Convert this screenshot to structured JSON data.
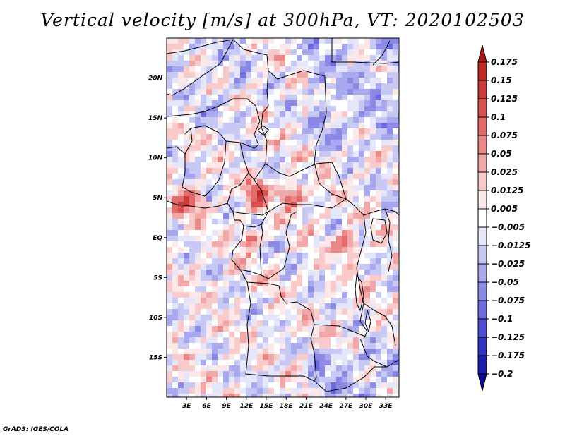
{
  "title": "Vertical velocity [m/s] at 300hPa, VT: 2020102503",
  "credit": "GrADS: IGES/COLA",
  "map": {
    "lat_labels": [
      "20N",
      "15N",
      "10N",
      "5N",
      "EQ",
      "5S",
      "10S",
      "15S"
    ],
    "lat_values": [
      20,
      15,
      10,
      5,
      0,
      -5,
      -10,
      -15
    ],
    "lon_labels": [
      "3E",
      "6E",
      "9E",
      "12E",
      "15E",
      "18E",
      "21E",
      "24E",
      "27E",
      "30E",
      "33E"
    ],
    "lon_values": [
      3,
      6,
      9,
      12,
      15,
      18,
      21,
      24,
      27,
      30,
      33
    ],
    "lon_range": [
      0,
      35
    ],
    "lat_range": [
      -20,
      25
    ]
  },
  "colorbar": {
    "labels": [
      "0.175",
      "0.15",
      "0.125",
      "0.1",
      "0.075",
      "0.05",
      "0.025",
      "0.0125",
      "0.005",
      "−0.005",
      "−0.0125",
      "−0.025",
      "−0.05",
      "−0.075",
      "−0.1",
      "−0.125",
      "−0.175",
      "−0.2"
    ],
    "colors": [
      "#b01818",
      "#c02828",
      "#cc3b3b",
      "#d85050",
      "#e26a6a",
      "#ea8888",
      "#f2a8a8",
      "#f8caca",
      "#fce8e8",
      "#ffffff",
      "#e6e6fb",
      "#c8c8f5",
      "#a8a8ee",
      "#8a8ae6",
      "#6c6cdd",
      "#4e4ed2",
      "#3232c4",
      "#1c1cae",
      "#0c0c8c"
    ]
  }
}
